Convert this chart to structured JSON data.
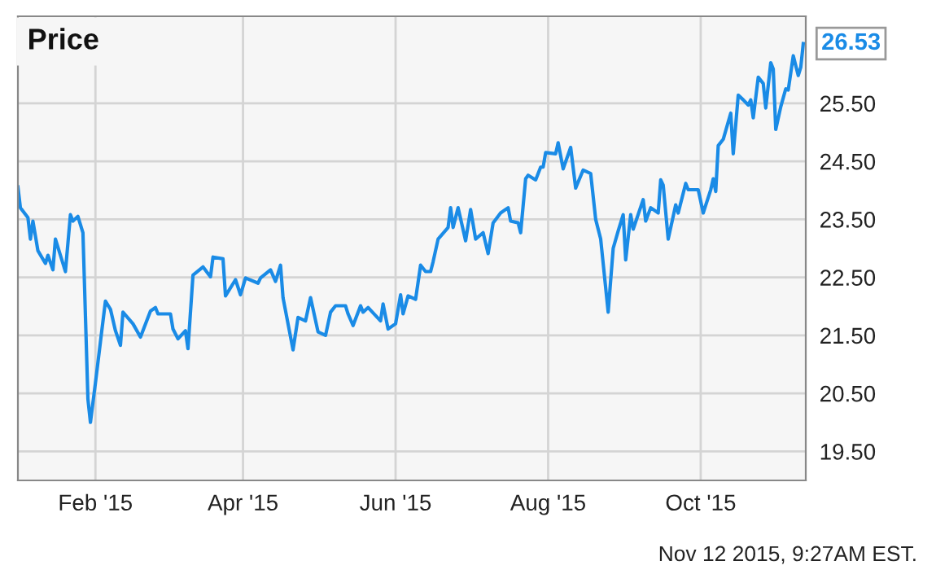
{
  "chart_data": {
    "type": "line",
    "title": "Price",
    "x": [
      "2015-01-01",
      "2015-01-02",
      "2015-01-05",
      "2015-01-06",
      "2015-01-07",
      "2015-01-09",
      "2015-01-12",
      "2015-01-13",
      "2015-01-15",
      "2015-01-16",
      "2015-01-20",
      "2015-01-22",
      "2015-01-23",
      "2015-01-25",
      "2015-01-27",
      "2015-01-29",
      "2015-01-30",
      "2015-02-01",
      "2015-02-03",
      "2015-02-05",
      "2015-02-07",
      "2015-02-09",
      "2015-02-11",
      "2015-02-12",
      "2015-02-16",
      "2015-02-19",
      "2015-02-23",
      "2015-02-25",
      "2015-02-26",
      "2015-03-03",
      "2015-03-04",
      "2015-03-06",
      "2015-03-09",
      "2015-03-10",
      "2015-03-12",
      "2015-03-16",
      "2015-03-19",
      "2015-03-20",
      "2015-03-24",
      "2015-03-25",
      "2015-03-29",
      "2015-03-31",
      "2015-04-02",
      "2015-04-07",
      "2015-04-08",
      "2015-04-12",
      "2015-04-14",
      "2015-04-16",
      "2015-04-17",
      "2015-04-21",
      "2015-04-23",
      "2015-04-26",
      "2015-04-28",
      "2015-05-01",
      "2015-05-04",
      "2015-05-06",
      "2015-05-08",
      "2015-05-12",
      "2015-05-13",
      "2015-05-15",
      "2015-05-18",
      "2015-05-19",
      "2015-05-21",
      "2015-05-26",
      "2015-05-27",
      "2015-05-29",
      "2015-06-01",
      "2015-06-03",
      "2015-06-04",
      "2015-06-06",
      "2015-06-09",
      "2015-06-11",
      "2015-06-13",
      "2015-06-15",
      "2015-06-16",
      "2015-06-18",
      "2015-06-22",
      "2015-06-23",
      "2015-06-24",
      "2015-06-26",
      "2015-06-29",
      "2015-07-01",
      "2015-07-03",
      "2015-07-06",
      "2015-07-08",
      "2015-07-10",
      "2015-07-13",
      "2015-07-16",
      "2015-07-17",
      "2015-07-20",
      "2015-07-21",
      "2015-07-23",
      "2015-07-24",
      "2015-07-27",
      "2015-07-29",
      "2015-07-30",
      "2015-07-31",
      "2015-08-04",
      "2015-08-05",
      "2015-08-07",
      "2015-08-10",
      "2015-08-12",
      "2015-08-15",
      "2015-08-18",
      "2015-08-20",
      "2015-08-22",
      "2015-08-25",
      "2015-08-27",
      "2015-08-29",
      "2015-08-31",
      "2015-09-01",
      "2015-09-03",
      "2015-09-04",
      "2015-09-08",
      "2015-09-09",
      "2015-09-11",
      "2015-09-14",
      "2015-09-15",
      "2015-09-16",
      "2015-09-18",
      "2015-09-21",
      "2015-09-22",
      "2015-09-25",
      "2015-09-26",
      "2015-09-30",
      "2015-10-02",
      "2015-10-05",
      "2015-10-06",
      "2015-10-07",
      "2015-10-08",
      "2015-10-10",
      "2015-10-13",
      "2015-10-14",
      "2015-10-16",
      "2015-10-18",
      "2015-10-20",
      "2015-10-21",
      "2015-10-22",
      "2015-10-24",
      "2015-10-26",
      "2015-10-27",
      "2015-10-29",
      "2015-10-30",
      "2015-10-31",
      "2015-11-02",
      "2015-11-04",
      "2015-11-05",
      "2015-11-07",
      "2015-11-09",
      "2015-11-10",
      "2015-11-11"
    ],
    "series": [
      {
        "color": "#1a8be6",
        "values": [
          24.06,
          23.7,
          23.53,
          23.16,
          23.47,
          22.96,
          22.74,
          22.88,
          22.63,
          23.16,
          22.6,
          23.58,
          23.47,
          23.55,
          23.27,
          20.4,
          20.0,
          20.68,
          21.39,
          22.09,
          21.95,
          21.58,
          21.33,
          21.9,
          21.7,
          21.47,
          21.92,
          21.98,
          21.87,
          21.87,
          21.61,
          21.44,
          21.58,
          21.27,
          22.54,
          22.68,
          22.51,
          22.85,
          22.82,
          22.18,
          22.46,
          22.2,
          22.49,
          22.4,
          22.49,
          22.63,
          22.43,
          22.71,
          22.15,
          21.25,
          21.81,
          21.75,
          22.15,
          21.56,
          21.5,
          21.9,
          22.01,
          22.01,
          21.87,
          21.67,
          22.01,
          21.9,
          21.98,
          21.75,
          22.04,
          21.61,
          21.7,
          22.2,
          21.87,
          22.18,
          22.12,
          22.71,
          22.6,
          22.6,
          22.77,
          23.16,
          23.36,
          23.7,
          23.36,
          23.7,
          23.13,
          23.67,
          23.16,
          23.27,
          22.91,
          23.44,
          23.61,
          23.7,
          23.47,
          23.44,
          23.27,
          24.2,
          24.26,
          24.18,
          24.4,
          24.4,
          24.65,
          24.63,
          24.82,
          24.37,
          24.74,
          24.04,
          24.35,
          24.29,
          23.5,
          23.16,
          21.9,
          23.0,
          23.3,
          23.58,
          22.8,
          23.58,
          23.33,
          23.84,
          23.47,
          23.7,
          23.61,
          24.18,
          24.09,
          23.16,
          23.75,
          23.61,
          24.12,
          24.01,
          24.01,
          23.61,
          24.01,
          24.2,
          23.98,
          24.77,
          24.88,
          25.33,
          24.63,
          25.64,
          25.56,
          25.47,
          25.56,
          25.25,
          25.95,
          25.84,
          25.42,
          26.2,
          26.09,
          25.05,
          25.44,
          25.75,
          25.73,
          26.32,
          25.98,
          26.12,
          26.53
        ]
      }
    ],
    "xlim": [
      "2015-01-01",
      "2015-11-12"
    ],
    "xticks": [
      {
        "value": "2015-02-01",
        "label": "Feb '15"
      },
      {
        "value": "2015-04-01",
        "label": "Apr '15"
      },
      {
        "value": "2015-06-01",
        "label": "Jun '15"
      },
      {
        "value": "2015-08-01",
        "label": "Aug '15"
      },
      {
        "value": "2015-10-01",
        "label": "Oct '15"
      }
    ],
    "ylim": [
      19.0,
      27.0
    ],
    "yticks": [
      {
        "value": 19.5,
        "label": "19.50"
      },
      {
        "value": 20.5,
        "label": "20.50"
      },
      {
        "value": 21.5,
        "label": "21.50"
      },
      {
        "value": 22.5,
        "label": "22.50"
      },
      {
        "value": 23.5,
        "label": "23.50"
      },
      {
        "value": 24.5,
        "label": "24.50"
      },
      {
        "value": 25.5,
        "label": "25.50"
      }
    ],
    "grid": true,
    "legend": false,
    "marker": "none",
    "line_style": "solid",
    "annotations": [
      {
        "text": "26.53",
        "x": "2015-11-11",
        "y": 26.53
      },
      "Nov 12 2015, 9:27AM EST."
    ]
  }
}
